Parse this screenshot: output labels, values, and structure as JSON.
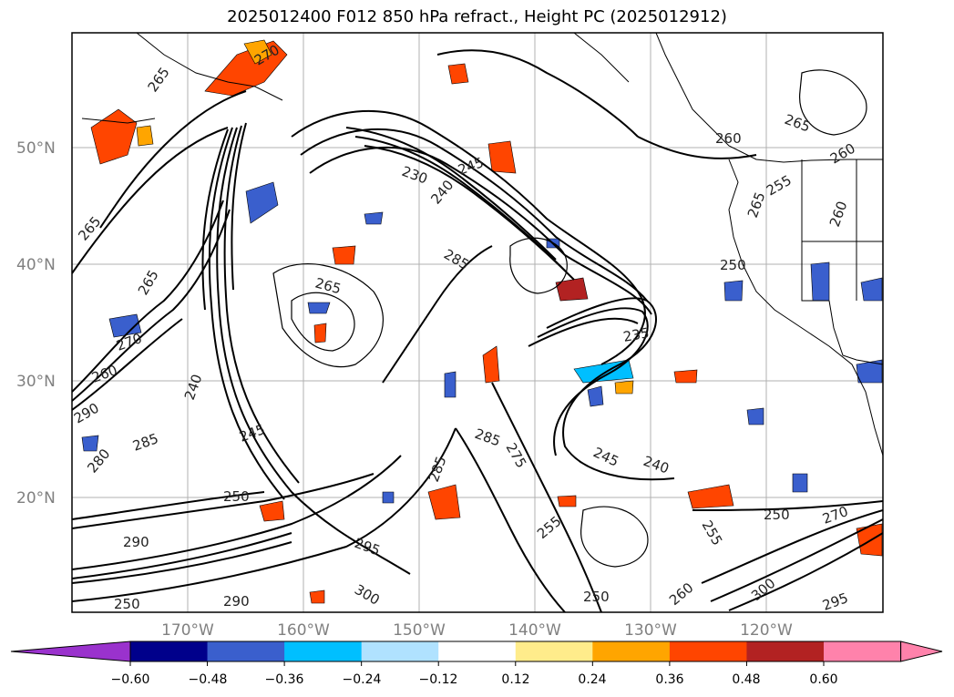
{
  "title": "2025012400 F012 850 hPa refract., Height PC (2025012912)",
  "map": {
    "lat_labels": [
      "50°N",
      "40°N",
      "30°N",
      "20°N"
    ],
    "lon_labels": [
      "170°W",
      "160°W",
      "150°W",
      "140°W",
      "130°W",
      "120°W"
    ],
    "contour_labels": [
      "265",
      "270",
      "265",
      "260",
      "265",
      "260",
      "250",
      "245",
      "240",
      "235",
      "285",
      "265",
      "270",
      "265",
      "290",
      "260",
      "285",
      "245",
      "240",
      "250",
      "280",
      "290",
      "250",
      "295",
      "300",
      "255",
      "275",
      "285",
      "285",
      "270",
      "255",
      "250",
      "260",
      "300",
      "295",
      "290",
      "245",
      "240",
      "250",
      "230",
      "260",
      "265",
      "255"
    ]
  },
  "colorbar": {
    "ticks": [
      "−0.60",
      "−0.48",
      "−0.36",
      "−0.24",
      "−0.12",
      "0.12",
      "0.24",
      "0.36",
      "0.48",
      "0.60"
    ],
    "colors": [
      "#9a32cd",
      "#00008b",
      "#3a5fcd",
      "#00bfff",
      "#b0e2ff",
      "#ffffff",
      "#ffec8b",
      "#ffa500",
      "#ff4500",
      "#b22222",
      "#ff82ab",
      "#ff82ab"
    ]
  }
}
